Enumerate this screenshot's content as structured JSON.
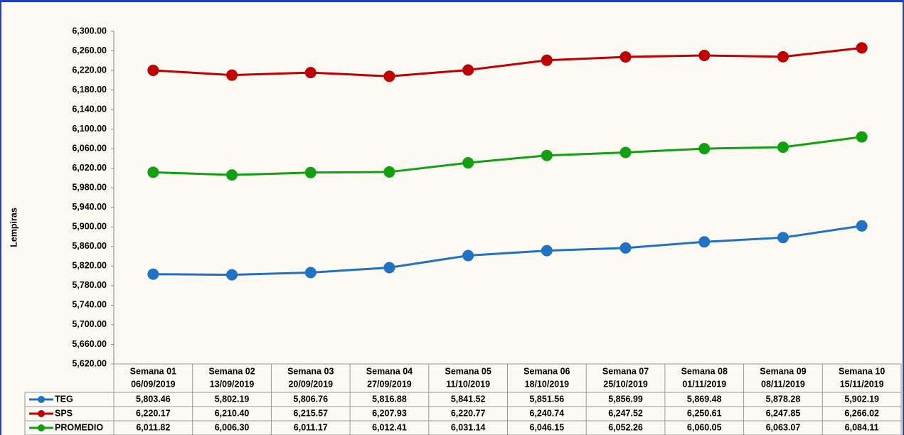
{
  "chart_data": {
    "type": "line",
    "y_label": "Lempiras",
    "categories": [
      [
        "Semana 01",
        "06/09/2019"
      ],
      [
        "Semana 02",
        "13/09/2019"
      ],
      [
        "Semana 03",
        "20/09/2019"
      ],
      [
        "Semana 04",
        "27/09/2019"
      ],
      [
        "Semana 05",
        "11/10/2019"
      ],
      [
        "Semana 06",
        "18/10/2019"
      ],
      [
        "Semana 07",
        "25/10/2019"
      ],
      [
        "Semana 08",
        "01/11/2019"
      ],
      [
        "Semana 09",
        "08/11/2019"
      ],
      [
        "Semana 10",
        "15/11/2019"
      ]
    ],
    "series": [
      {
        "name": "TEG",
        "color": "#1f72c4",
        "values": [
          5803.46,
          5802.19,
          5806.76,
          5816.88,
          5841.52,
          5851.56,
          5856.99,
          5869.48,
          5878.28,
          5902.19
        ],
        "value_labels": [
          "5,803.46",
          "5,802.19",
          "5,806.76",
          "5,816.88",
          "5,841.52",
          "5,851.56",
          "5,856.99",
          "5,869.48",
          "5,878.28",
          "5,902.19"
        ]
      },
      {
        "name": "SPS",
        "color": "#c00000",
        "values": [
          6220.17,
          6210.4,
          6215.57,
          6207.93,
          6220.77,
          6240.74,
          6247.52,
          6250.61,
          6247.85,
          6266.02
        ],
        "value_labels": [
          "6,220.17",
          "6,210.40",
          "6,215.57",
          "6,207.93",
          "6,220.77",
          "6,240.74",
          "6,247.52",
          "6,250.61",
          "6,247.85",
          "6,266.02"
        ]
      },
      {
        "name": "PROMEDIO",
        "color": "#10a010",
        "values": [
          6011.82,
          6006.3,
          6011.17,
          6012.41,
          6031.14,
          6046.15,
          6052.26,
          6060.05,
          6063.07,
          6084.11
        ],
        "value_labels": [
          "6,011.82",
          "6,006.30",
          "6,011.17",
          "6,012.41",
          "6,031.14",
          "6,046.15",
          "6,052.26",
          "6,060.05",
          "6,063.07",
          "6,084.11"
        ]
      }
    ],
    "ylim": [
      5620,
      6300
    ],
    "yticks": [
      {
        "value": 5620,
        "label": "5,620.00"
      },
      {
        "value": 5660,
        "label": "5,660.00"
      },
      {
        "value": 5700,
        "label": "5,700.00"
      },
      {
        "value": 5740,
        "label": "5,740.00"
      },
      {
        "value": 5780,
        "label": "5,780.00"
      },
      {
        "value": 5820,
        "label": "5,820.00"
      },
      {
        "value": 5860,
        "label": "5,860.00"
      },
      {
        "value": 5900,
        "label": "5,900.00"
      },
      {
        "value": 5940,
        "label": "5,940.00"
      },
      {
        "value": 5980,
        "label": "5,980.00"
      },
      {
        "value": 6020,
        "label": "6,020.00"
      },
      {
        "value": 6060,
        "label": "6,060.00"
      },
      {
        "value": 6100,
        "label": "6,100.00"
      },
      {
        "value": 6140,
        "label": "6,140.00"
      },
      {
        "value": 6180,
        "label": "6,180.00"
      },
      {
        "value": 6220,
        "label": "6,220.00"
      },
      {
        "value": 6260,
        "label": "6,260.00"
      },
      {
        "value": 6300,
        "label": "6,300.00"
      }
    ],
    "grid": false
  }
}
